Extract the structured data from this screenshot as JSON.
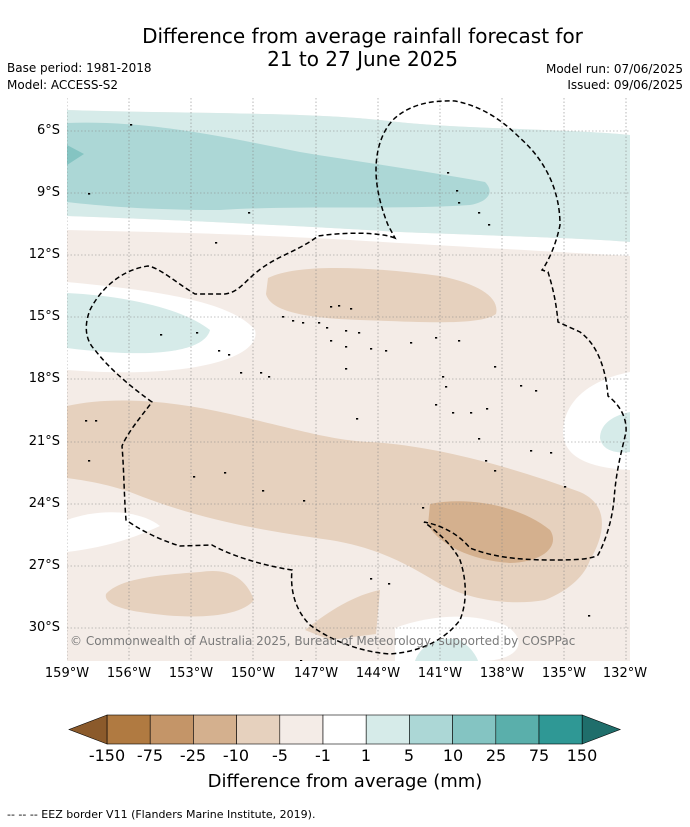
{
  "title_line1": "Difference from average rainfall forecast for",
  "title_line2": "21 to 27 June 2025",
  "base_period": "Base period: 1981-2018",
  "model": "Model: ACCESS-S2",
  "model_run": "Model run: 07/06/2025",
  "issued": "Issued: 09/06/2025",
  "copyright": "© Commonwealth of Australia 2025, Bureau of Meteorology, supported by COSPPac",
  "lat_labels": [
    "6°S",
    "9°S",
    "12°S",
    "15°S",
    "18°S",
    "21°S",
    "24°S",
    "27°S",
    "30°S"
  ],
  "lon_labels": [
    "159°W",
    "156°W",
    "153°W",
    "150°W",
    "147°W",
    "144°W",
    "141°W",
    "138°W",
    "135°W",
    "132°W"
  ],
  "colorbar": {
    "ticks": [
      "-150",
      "-75",
      "-25",
      "-10",
      "-5",
      "-1",
      "1",
      "5",
      "10",
      "25",
      "75",
      "150"
    ],
    "colors": [
      "#b07a41",
      "#c49568",
      "#d4b08e",
      "#e6d1be",
      "#f4ece7",
      "#ffffff",
      "#d6ebe9",
      "#acd7d6",
      "#84c4c2",
      "#5aafab",
      "#2f9895"
    ],
    "under_color": "#8b5a2b",
    "over_color": "#1f6e6b",
    "label": "Difference from average (mm)"
  },
  "footer": "-- -- -- EEZ border V11 (Flanders Marine Institute, 2019)."
}
